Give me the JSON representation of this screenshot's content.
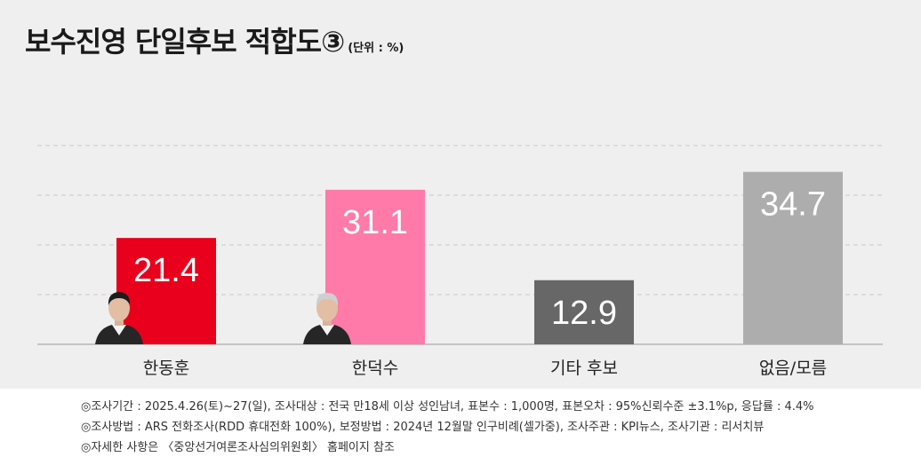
{
  "title": "보수진영 단일후보 적합도③",
  "unit": "(단위 : %)",
  "chart_data": {
    "type": "bar",
    "categories": [
      "한동훈",
      "한덕수",
      "기타 후보",
      "없음/모름"
    ],
    "values": [
      21.4,
      31.1,
      12.9,
      34.7
    ],
    "colors": [
      "#e8001c",
      "#ff7aa8",
      "#676767",
      "#adadad"
    ],
    "ylim": [
      0,
      40
    ],
    "grid": true,
    "legend": "none"
  },
  "notes": [
    "◎조사기간 : 2025.4.26(토)~27(일), 조사대상 : 전국 만18세 이상 성인남녀, 표본수 : 1,000명, 표본오차 : 95%신뢰수준 ±3.1%p, 응답률 : 4.4%",
    "◎조사방법 : ARS 전화조사(RDD 휴대전화 100%), 보정방법 : 2024년 12월말 인구비례(셀가중), 조사주관 : KPI뉴스, 조사기관 : 리서치뷰",
    "◎자세한 사항은 〈중앙선거여론조사심의위원회〉 홈페이지 참조"
  ]
}
